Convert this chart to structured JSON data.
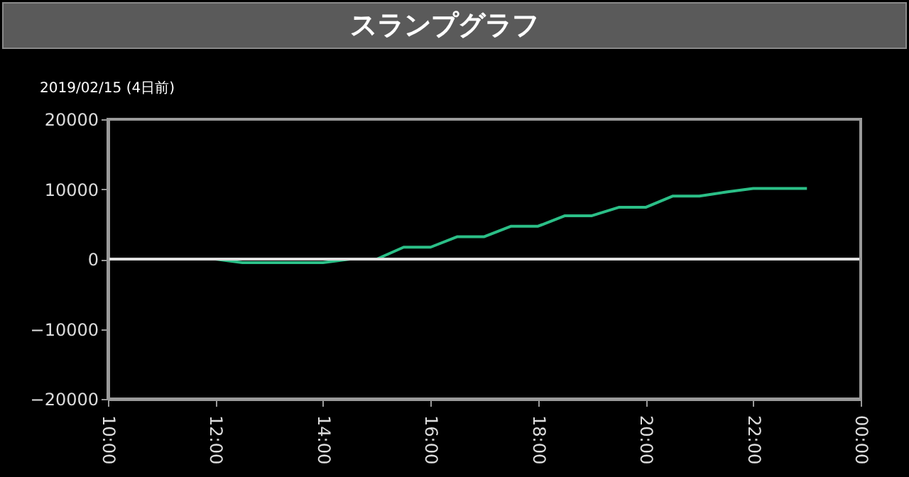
{
  "chart_data": {
    "type": "line",
    "title": "スランプグラフ",
    "subtitle": "2019/02/15 (4日前)",
    "x": [
      10,
      12,
      12.5,
      14,
      14.5,
      15,
      15.5,
      16,
      16.5,
      17,
      17.5,
      18,
      18.5,
      19,
      19.5,
      20,
      20.5,
      21,
      21.5,
      22,
      23
    ],
    "series": [
      {
        "color": "#2bbf87",
        "values": [
          0,
          0,
          -500,
          -500,
          0,
          0,
          1700,
          1700,
          3200,
          3200,
          4700,
          4700,
          6200,
          6200,
          7400,
          7400,
          9000,
          9000,
          9600,
          10100,
          10100
        ]
      }
    ],
    "xlim": [
      10,
      24
    ],
    "xticks": [
      {
        "value": 10,
        "label": "10:00"
      },
      {
        "value": 12,
        "label": "12:00"
      },
      {
        "value": 14,
        "label": "14:00"
      },
      {
        "value": 16,
        "label": "16:00"
      },
      {
        "value": 18,
        "label": "18:00"
      },
      {
        "value": 20,
        "label": "20:00"
      },
      {
        "value": 22,
        "label": "22:00"
      },
      {
        "value": 24,
        "label": "00:00"
      }
    ],
    "ylim": [
      -20000,
      20000
    ],
    "yticks": [
      -20000,
      -10000,
      0,
      10000,
      20000
    ],
    "ref_lines": [
      {
        "axis": "y",
        "value": 0,
        "color": "#e0e0e0"
      }
    ],
    "grid": false,
    "marker": "none",
    "line_style": "solid"
  }
}
